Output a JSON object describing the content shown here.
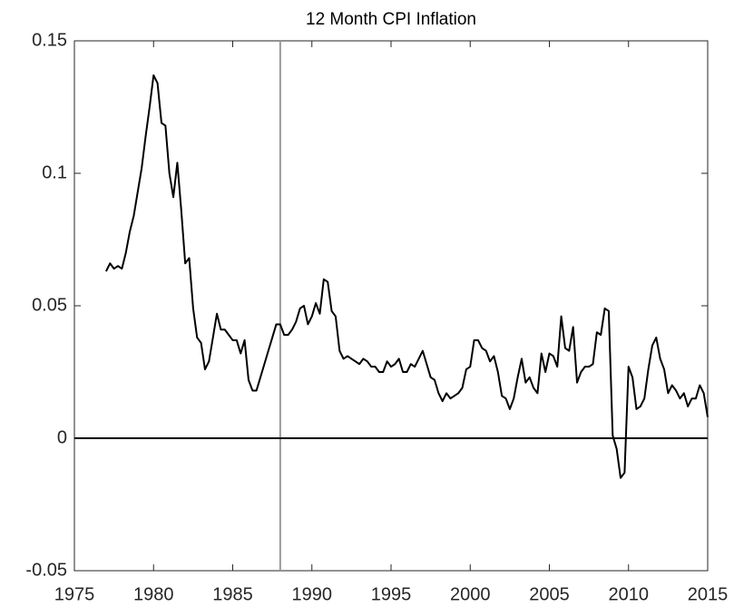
{
  "chart_data": {
    "type": "line",
    "title": "12 Month CPI Inflation",
    "x": [
      1977,
      1977.25,
      1977.5,
      1977.75,
      1978,
      1978.25,
      1978.5,
      1978.75,
      1979,
      1979.25,
      1979.5,
      1979.75,
      1980,
      1980.25,
      1980.5,
      1980.75,
      1981,
      1981.25,
      1981.5,
      1981.75,
      1982,
      1982.25,
      1982.5,
      1982.75,
      1983,
      1983.25,
      1983.5,
      1983.75,
      1984,
      1984.25,
      1984.5,
      1984.75,
      1985,
      1985.25,
      1985.5,
      1985.75,
      1986,
      1986.25,
      1986.5,
      1986.75,
      1987,
      1987.25,
      1987.5,
      1987.75,
      1988,
      1988.25,
      1988.5,
      1988.75,
      1989,
      1989.25,
      1989.5,
      1989.75,
      1990,
      1990.25,
      1990.5,
      1990.75,
      1991,
      1991.25,
      1991.5,
      1991.75,
      1992,
      1992.25,
      1992.5,
      1992.75,
      1993,
      1993.25,
      1993.5,
      1993.75,
      1994,
      1994.25,
      1994.5,
      1994.75,
      1995,
      1995.25,
      1995.5,
      1995.75,
      1996,
      1996.25,
      1996.5,
      1996.75,
      1997,
      1997.25,
      1997.5,
      1997.75,
      1998,
      1998.25,
      1998.5,
      1998.75,
      1999,
      1999.25,
      1999.5,
      1999.75,
      2000,
      2000.25,
      2000.5,
      2000.75,
      2001,
      2001.25,
      2001.5,
      2001.75,
      2002,
      2002.25,
      2002.5,
      2002.75,
      2003,
      2003.25,
      2003.5,
      2003.75,
      2004,
      2004.25,
      2004.5,
      2004.75,
      2005,
      2005.25,
      2005.5,
      2005.75,
      2006,
      2006.25,
      2006.5,
      2006.75,
      2007,
      2007.25,
      2007.5,
      2007.75,
      2008,
      2008.25,
      2008.5,
      2008.75,
      2009,
      2009.25,
      2009.5,
      2009.75,
      2010,
      2010.25,
      2010.5,
      2010.75,
      2011,
      2011.25,
      2011.5,
      2011.75,
      2012,
      2012.25,
      2012.5,
      2012.75,
      2013,
      2013.25,
      2013.5,
      2013.75,
      2014,
      2014.25,
      2014.5,
      2014.75,
      2015
    ],
    "series": [
      {
        "color": "#000000",
        "values": [
          0.063,
          0.066,
          0.064,
          0.065,
          0.064,
          0.07,
          0.078,
          0.084,
          0.093,
          0.102,
          0.114,
          0.125,
          0.137,
          0.134,
          0.119,
          0.118,
          0.1,
          0.091,
          0.104,
          0.086,
          0.066,
          0.068,
          0.049,
          0.038,
          0.036,
          0.026,
          0.029,
          0.038,
          0.047,
          0.041,
          0.041,
          0.039,
          0.037,
          0.037,
          0.032,
          0.037,
          0.022,
          0.018,
          0.018,
          0.023,
          0.028,
          0.033,
          0.038,
          0.043,
          0.043,
          0.039,
          0.039,
          0.041,
          0.044,
          0.049,
          0.05,
          0.043,
          0.046,
          0.051,
          0.047,
          0.06,
          0.059,
          0.048,
          0.046,
          0.033,
          0.03,
          0.031,
          0.03,
          0.029,
          0.028,
          0.03,
          0.029,
          0.027,
          0.027,
          0.025,
          0.025,
          0.029,
          0.027,
          0.028,
          0.03,
          0.025,
          0.025,
          0.028,
          0.027,
          0.03,
          0.033,
          0.028,
          0.023,
          0.022,
          0.017,
          0.014,
          0.017,
          0.015,
          0.016,
          0.017,
          0.019,
          0.026,
          0.027,
          0.037,
          0.037,
          0.034,
          0.033,
          0.029,
          0.031,
          0.025,
          0.016,
          0.015,
          0.011,
          0.015,
          0.023,
          0.03,
          0.021,
          0.023,
          0.019,
          0.017,
          0.032,
          0.025,
          0.032,
          0.031,
          0.027,
          0.046,
          0.034,
          0.033,
          0.042,
          0.021,
          0.025,
          0.027,
          0.027,
          0.028,
          0.04,
          0.039,
          0.049,
          0.048,
          0.001,
          -0.004,
          -0.015,
          -0.013,
          0.027,
          0.023,
          0.011,
          0.012,
          0.015,
          0.026,
          0.035,
          0.038,
          0.03,
          0.026,
          0.017,
          0.02,
          0.018,
          0.015,
          0.017,
          0.012,
          0.015,
          0.015,
          0.02,
          0.017,
          0.008
        ]
      }
    ],
    "xlim": [
      1975,
      2015
    ],
    "xticks": [
      1975,
      1980,
      1985,
      1990,
      1995,
      2000,
      2005,
      2010,
      2015
    ],
    "ylim": [
      -0.05,
      0.15
    ],
    "yticks": [
      -0.05,
      0,
      0.05,
      0.1,
      0.15
    ],
    "vline_x": 1988,
    "vline_color": "#999999",
    "hline_y": 0,
    "hline_color": "#000000"
  }
}
